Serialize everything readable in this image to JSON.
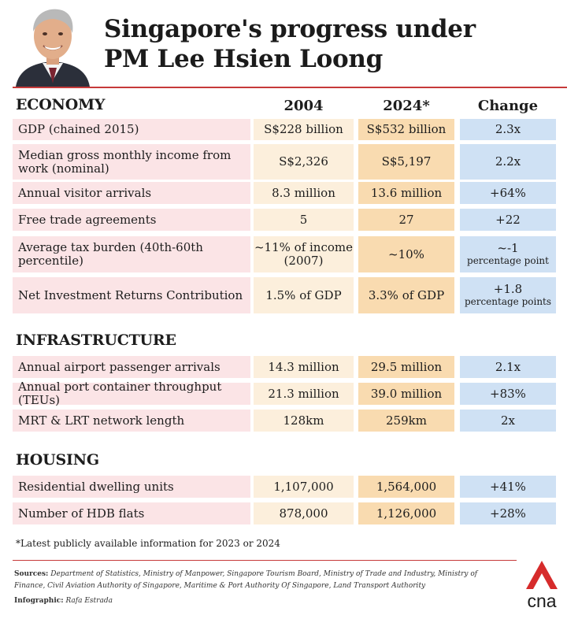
{
  "title": {
    "line1": "Singapore's progress under",
    "line2": "PM Lee Hsien Loong"
  },
  "columns": {
    "y2004": "2004",
    "y2024": "2024*",
    "change": "Change"
  },
  "sections": {
    "economy": "ECONOMY",
    "infrastructure": "INFRASTRUCTURE",
    "housing": "HOUSING"
  },
  "rows": [
    {
      "label": "GDP (chained 2015)",
      "v2004": "S$228 billion",
      "v2024": "S$532 billion",
      "change": "2.3x",
      "change_sub": ""
    },
    {
      "label": "Median gross monthly income from work (nominal)",
      "v2004": "S$2,326",
      "v2024": "S$5,197",
      "change": "2.2x",
      "change_sub": ""
    },
    {
      "label": "Annual visitor arrivals",
      "v2004": "8.3 million",
      "v2024": "13.6 million",
      "change": "+64%",
      "change_sub": ""
    },
    {
      "label": "Free trade agreements",
      "v2004": "5",
      "v2024": "27",
      "change": "+22",
      "change_sub": ""
    },
    {
      "label": "Average tax burden (40th-60th percentile)",
      "v2004": "~11% of income (2007)",
      "v2024": "~10%",
      "change": "~-1",
      "change_sub": "percentage point"
    },
    {
      "label": "Net Investment Returns Contribution",
      "v2004": "1.5% of GDP",
      "v2024": "3.3% of GDP",
      "change": "+1.8",
      "change_sub": "percentage points"
    },
    {
      "label": "Annual airport passenger arrivals",
      "v2004": "14.3 million",
      "v2024": "29.5 million",
      "change": "2.1x",
      "change_sub": ""
    },
    {
      "label": "Annual port container throughput (TEUs)",
      "v2004": "21.3 million",
      "v2024": "39.0 million",
      "change": "+83%",
      "change_sub": ""
    },
    {
      "label": "MRT & LRT network length",
      "v2004": "128km",
      "v2024": "259km",
      "change": "2x",
      "change_sub": ""
    },
    {
      "label": "Residential dwelling units",
      "v2004": "1,107,000",
      "v2024": "1,564,000",
      "change": "+41%",
      "change_sub": ""
    },
    {
      "label": "Number of HDB flats",
      "v2004": "878,000",
      "v2024": "1,126,000",
      "change": "+28%",
      "change_sub": ""
    }
  ],
  "footnote": "*Latest publicly available information for 2023 or 2024",
  "sources": {
    "label": "Sources:",
    "text": "Department of Statistics, Ministry of Manpower, Singapore Tourism Board, Ministry of Trade and Industry, Ministry of Finance, Civil Aviation Authority of Singapore, Maritime & Port Authority Of Singapore, Land Transport Authority"
  },
  "credit": {
    "label": "Infographic:",
    "text": "Rafa Estrada"
  },
  "logo_text": "cna",
  "colors": {
    "accent": "#c63a3a",
    "label_bg": "#fbe4e6",
    "y2004_bg": "#fcefdc",
    "y2024_bg": "#f9dbb0",
    "change_bg": "#cfe1f4"
  }
}
